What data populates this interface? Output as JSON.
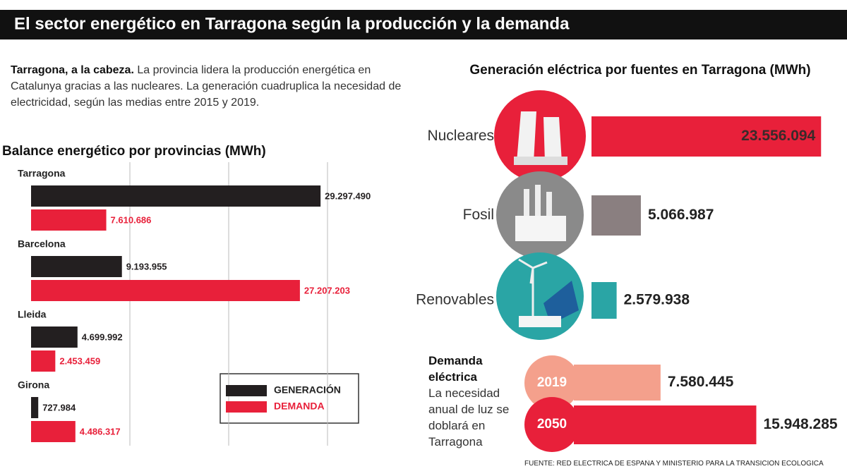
{
  "header": {
    "title": "El sector energético en Tarragona según la producción y la demanda"
  },
  "intro": {
    "lead": "Tarragona, a la cabeza.",
    "text": "La provincia lidera la producción energética en Catalunya gracias a las nucleares. La generación cuadruplica la necesidad de electricidad, según las medias entre 2015 y 2019."
  },
  "chart_data": [
    {
      "type": "bar",
      "orientation": "horizontal",
      "title": "Balance energético por provincias (MWh)",
      "categories": [
        "Tarragona",
        "Barcelona",
        "Lleida",
        "Girona"
      ],
      "series": [
        {
          "name": "GENERACIÓN",
          "color": "#231f20",
          "values": [
            29297490,
            9193955,
            4699992,
            727984
          ],
          "value_labels": [
            "29.297.490",
            "9.193.955",
            "4.699.992",
            "727.984"
          ]
        },
        {
          "name": "DEMANDA",
          "color": "#e8203a",
          "values": [
            7610686,
            27207203,
            2453459,
            4486317
          ],
          "value_labels": [
            "7.610.686",
            "27.207.203",
            "2.453.459",
            "4.486.317"
          ]
        }
      ],
      "xlim": [
        0,
        30000000
      ],
      "grid": true,
      "xgrid": [
        10000000,
        20000000,
        30000000
      ],
      "legend": "lower right"
    },
    {
      "type": "bar",
      "orientation": "horizontal",
      "title": "Generación eléctrica por fuentes en Tarragona (MWh)",
      "categories": [
        "Nucleares",
        "Fosil",
        "Renovables"
      ],
      "values": [
        23556094,
        5066987,
        2579938
      ],
      "value_labels": [
        "23.556.094",
        "5.066.987",
        "2.579.938"
      ],
      "colors": [
        "#e8203a",
        "#8a7f80",
        "#2aa5a5"
      ],
      "xlim": [
        0,
        26000000
      ]
    },
    {
      "type": "bar",
      "orientation": "horizontal",
      "title": "Demanda eléctrica",
      "subtitle": "La necesidad anual de luz se doblará en Tarragona",
      "categories": [
        "2019",
        "2050"
      ],
      "values": [
        7580445,
        15948285
      ],
      "value_labels": [
        "7.580.445",
        "15.948.285"
      ],
      "colors": [
        "#f4a08c",
        "#e8203a"
      ],
      "xlim": [
        0,
        24000000
      ]
    }
  ],
  "source": "FUENTE: RED ELÉCTRICA DE ESPAÑA Y MINISTERIO PARA LA TRANSICIÓN ECOLÓGICA"
}
